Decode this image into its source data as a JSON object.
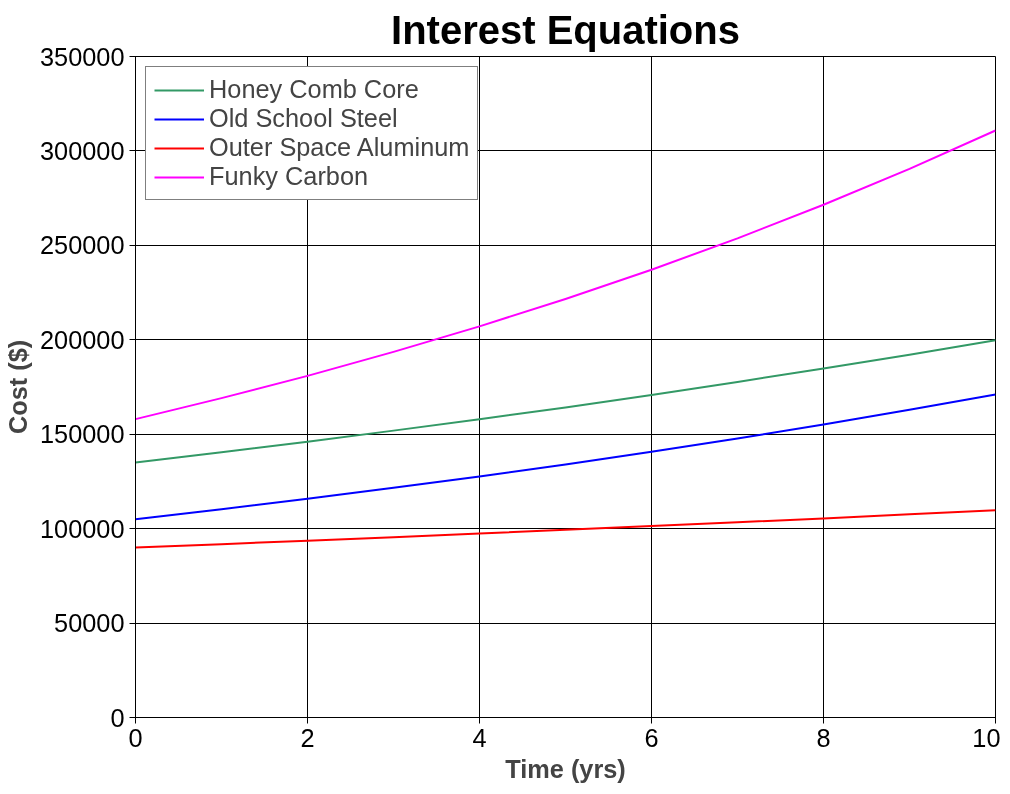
{
  "chart_data": {
    "type": "line",
    "title": "Interest Equations",
    "xlabel": "Time (yrs)",
    "ylabel": "Cost ($)",
    "x": [
      0,
      1,
      2,
      3,
      4,
      5,
      6,
      7,
      8,
      9,
      10
    ],
    "series": [
      {
        "name": "Honey Comb Core",
        "color": "#339966",
        "values": [
          135000,
          140400,
          146000,
          151900,
          157900,
          164200,
          170800,
          177700,
          184800,
          192100,
          199800
        ]
      },
      {
        "name": "Old School Steel",
        "color": "#0000ff",
        "values": [
          105000,
          110300,
          115800,
          121600,
          127600,
          134000,
          140700,
          147700,
          155100,
          162900,
          171000
        ]
      },
      {
        "name": "Outer Space Aluminum",
        "color": "#ff0000",
        "values": [
          90000,
          91800,
          93600,
          95500,
          97400,
          99400,
          101400,
          103400,
          105400,
          107600,
          109700
        ]
      },
      {
        "name": "Funky Carbon",
        "color": "#ff00ff",
        "values": [
          158000,
          169100,
          180900,
          193600,
          207100,
          221600,
          237100,
          253700,
          271500,
          290500,
          310800
        ]
      }
    ],
    "xlim": [
      0,
      10
    ],
    "xticks": [
      0,
      2,
      4,
      6,
      8,
      10
    ],
    "ylim": [
      0,
      350000
    ],
    "yticks": [
      0,
      50000,
      100000,
      150000,
      200000,
      250000,
      300000,
      350000
    ],
    "grid": true,
    "legend": "top left",
    "marker": "none",
    "line_style": "solid"
  }
}
